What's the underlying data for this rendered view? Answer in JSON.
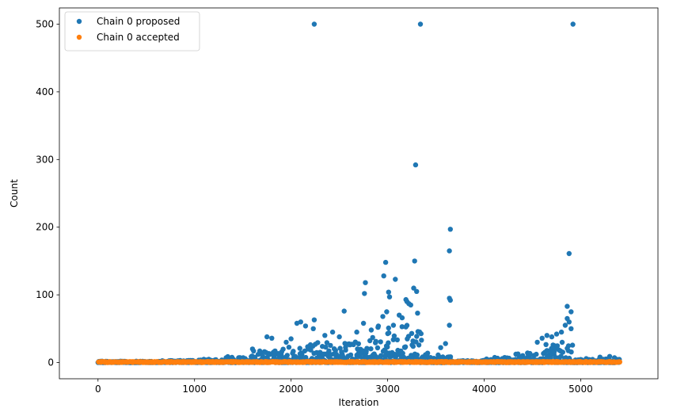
{
  "chart_data": {
    "type": "scatter",
    "title": "",
    "xlabel": "Iteration",
    "ylabel": "Count",
    "xlim": [
      -400,
      5800
    ],
    "ylim": [
      -24,
      524
    ],
    "xticks": [
      0,
      1000,
      2000,
      3000,
      4000,
      5000
    ],
    "yticks": [
      0,
      100,
      200,
      300,
      400,
      500
    ],
    "grid": false,
    "legend": "top-left",
    "series": [
      {
        "name": "Chain 0 proposed",
        "color": "#1f77b4",
        "bands": [
          {
            "x_start": 0,
            "x_end": 650,
            "y_max": 2
          },
          {
            "x_start": 650,
            "x_end": 1000,
            "y_max": 3
          },
          {
            "x_start": 1000,
            "x_end": 1300,
            "y_max": 5
          },
          {
            "x_start": 1300,
            "x_end": 1600,
            "y_max": 10
          },
          {
            "x_start": 1600,
            "x_end": 1900,
            "y_max": 18
          },
          {
            "x_start": 1900,
            "x_end": 2200,
            "y_max": 25
          },
          {
            "x_start": 2200,
            "x_end": 2600,
            "y_max": 30
          },
          {
            "x_start": 2600,
            "x_end": 2900,
            "y_max": 40
          },
          {
            "x_start": 2900,
            "x_end": 3350,
            "y_max": 55
          },
          {
            "x_start": 3350,
            "x_end": 3650,
            "y_max": 15
          },
          {
            "x_start": 3650,
            "x_end": 4000,
            "y_max": 3
          },
          {
            "x_start": 4000,
            "x_end": 4300,
            "y_max": 8
          },
          {
            "x_start": 4300,
            "x_end": 4600,
            "y_max": 15
          },
          {
            "x_start": 4600,
            "x_end": 4920,
            "y_max": 30
          },
          {
            "x_start": 4920,
            "x_end": 5400,
            "y_max": 6
          }
        ],
        "points": [
          {
            "x": 2240,
            "y": 500
          },
          {
            "x": 3340,
            "y": 500
          },
          {
            "x": 4920,
            "y": 500
          },
          {
            "x": 3290,
            "y": 292
          },
          {
            "x": 3650,
            "y": 197
          },
          {
            "x": 3640,
            "y": 165
          },
          {
            "x": 4880,
            "y": 161
          },
          {
            "x": 3280,
            "y": 150
          },
          {
            "x": 2980,
            "y": 148
          },
          {
            "x": 3080,
            "y": 123
          },
          {
            "x": 2770,
            "y": 118
          },
          {
            "x": 2960,
            "y": 128
          },
          {
            "x": 3300,
            "y": 105
          },
          {
            "x": 3010,
            "y": 104
          },
          {
            "x": 3270,
            "y": 110
          },
          {
            "x": 2760,
            "y": 102
          },
          {
            "x": 3020,
            "y": 97
          },
          {
            "x": 3640,
            "y": 95
          },
          {
            "x": 3650,
            "y": 92
          },
          {
            "x": 3200,
            "y": 90
          },
          {
            "x": 3220,
            "y": 87
          },
          {
            "x": 3240,
            "y": 85
          },
          {
            "x": 3190,
            "y": 93
          },
          {
            "x": 4860,
            "y": 83
          },
          {
            "x": 4900,
            "y": 75
          },
          {
            "x": 2990,
            "y": 75
          },
          {
            "x": 2550,
            "y": 76
          },
          {
            "x": 3310,
            "y": 73
          },
          {
            "x": 3120,
            "y": 70
          },
          {
            "x": 3150,
            "y": 66
          },
          {
            "x": 4860,
            "y": 65
          },
          {
            "x": 4880,
            "y": 60
          },
          {
            "x": 2950,
            "y": 68
          },
          {
            "x": 2240,
            "y": 63
          },
          {
            "x": 2100,
            "y": 60
          },
          {
            "x": 2060,
            "y": 58
          },
          {
            "x": 2150,
            "y": 54
          },
          {
            "x": 2750,
            "y": 58
          },
          {
            "x": 3640,
            "y": 55
          },
          {
            "x": 4840,
            "y": 55
          },
          {
            "x": 4900,
            "y": 50
          },
          {
            "x": 3060,
            "y": 55
          },
          {
            "x": 2900,
            "y": 52
          },
          {
            "x": 2830,
            "y": 48
          },
          {
            "x": 4800,
            "y": 45
          },
          {
            "x": 2430,
            "y": 45
          },
          {
            "x": 2230,
            "y": 50
          },
          {
            "x": 2680,
            "y": 45
          },
          {
            "x": 1750,
            "y": 38
          },
          {
            "x": 1800,
            "y": 36
          },
          {
            "x": 3600,
            "y": 28
          },
          {
            "x": 3550,
            "y": 22
          },
          {
            "x": 3350,
            "y": 33
          },
          {
            "x": 4650,
            "y": 40
          },
          {
            "x": 4700,
            "y": 38
          },
          {
            "x": 4550,
            "y": 30
          },
          {
            "x": 4600,
            "y": 36
          },
          {
            "x": 4750,
            "y": 42
          },
          {
            "x": 2000,
            "y": 35
          },
          {
            "x": 2350,
            "y": 40
          },
          {
            "x": 2500,
            "y": 38
          },
          {
            "x": 1950,
            "y": 30
          },
          {
            "x": 1600,
            "y": 20
          },
          {
            "x": 5300,
            "y": 9
          },
          {
            "x": 5200,
            "y": 8
          },
          {
            "x": 5350,
            "y": 7
          }
        ]
      },
      {
        "name": "Chain 0 accepted",
        "color": "#ff7f0e",
        "bands": [
          {
            "x_start": 0,
            "x_end": 5400,
            "y_max": 1.5
          }
        ],
        "points": []
      }
    ]
  }
}
